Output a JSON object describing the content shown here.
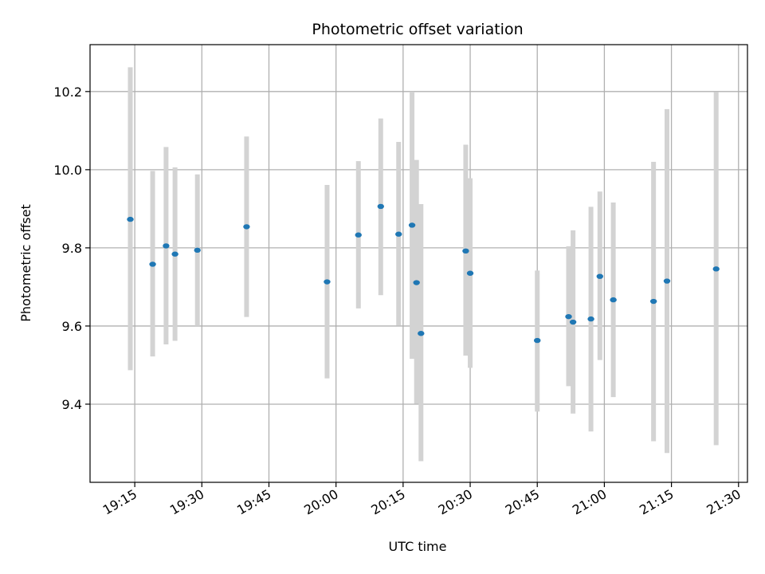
{
  "chart_data": {
    "type": "scatter",
    "title": "Photometric offset variation",
    "xlabel": "UTC time",
    "ylabel": "Photometric offset",
    "x_ticks": [
      "19:15",
      "19:30",
      "19:45",
      "20:00",
      "20:15",
      "20:30",
      "20:45",
      "21:00",
      "21:15",
      "21:30"
    ],
    "y_ticks": [
      9.4,
      9.6,
      9.8,
      10.0,
      10.2
    ],
    "xlim": [
      "19:05",
      "21:32"
    ],
    "ylim": [
      9.2,
      10.32
    ],
    "grid": true,
    "colors": {
      "points": "#1f77b4",
      "errorbars": "#d3d3d3",
      "grid": "#b0b0b0"
    },
    "points": [
      {
        "x": "19:14",
        "y": 9.873,
        "lo": 9.487,
        "hi": 10.262
      },
      {
        "x": "19:19",
        "y": 9.758,
        "lo": 9.522,
        "hi": 9.997
      },
      {
        "x": "19:22",
        "y": 9.805,
        "lo": 9.553,
        "hi": 10.058
      },
      {
        "x": "19:24",
        "y": 9.784,
        "lo": 9.562,
        "hi": 10.006
      },
      {
        "x": "19:29",
        "y": 9.794,
        "lo": 9.6,
        "hi": 9.988
      },
      {
        "x": "19:40",
        "y": 9.854,
        "lo": 9.623,
        "hi": 10.085
      },
      {
        "x": "19:58",
        "y": 9.713,
        "lo": 9.466,
        "hi": 9.961
      },
      {
        "x": "20:05",
        "y": 9.833,
        "lo": 9.645,
        "hi": 10.022
      },
      {
        "x": "20:10",
        "y": 9.906,
        "lo": 9.679,
        "hi": 10.131
      },
      {
        "x": "20:14",
        "y": 9.835,
        "lo": 9.601,
        "hi": 10.071
      },
      {
        "x": "20:17",
        "y": 9.858,
        "lo": 9.516,
        "hi": 10.2
      },
      {
        "x": "20:18",
        "y": 9.711,
        "lo": 9.401,
        "hi": 10.025
      },
      {
        "x": "20:19",
        "y": 9.581,
        "lo": 9.254,
        "hi": 9.912
      },
      {
        "x": "20:29",
        "y": 9.792,
        "lo": 9.524,
        "hi": 10.064
      },
      {
        "x": "20:30",
        "y": 9.735,
        "lo": 9.493,
        "hi": 9.978
      },
      {
        "x": "20:45",
        "y": 9.563,
        "lo": 9.381,
        "hi": 9.742
      },
      {
        "x": "20:52",
        "y": 9.624,
        "lo": 9.446,
        "hi": 9.804
      },
      {
        "x": "20:53",
        "y": 9.61,
        "lo": 9.376,
        "hi": 9.845
      },
      {
        "x": "20:57",
        "y": 9.618,
        "lo": 9.33,
        "hi": 9.905
      },
      {
        "x": "20:59",
        "y": 9.727,
        "lo": 9.513,
        "hi": 9.944
      },
      {
        "x": "21:02",
        "y": 9.667,
        "lo": 9.418,
        "hi": 9.916
      },
      {
        "x": "21:11",
        "y": 9.663,
        "lo": 9.305,
        "hi": 10.02
      },
      {
        "x": "21:14",
        "y": 9.715,
        "lo": 9.275,
        "hi": 10.155
      },
      {
        "x": "21:25",
        "y": 9.746,
        "lo": 9.295,
        "hi": 10.198
      }
    ]
  }
}
